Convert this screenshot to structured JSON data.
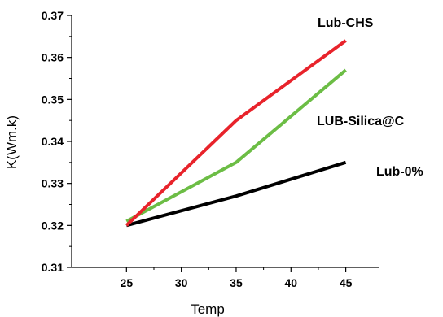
{
  "chart_data": {
    "type": "line",
    "title": "",
    "xlabel": "Temp",
    "ylabel": "K(Wm.k)",
    "x": [
      25,
      35,
      45
    ],
    "xlim": [
      20,
      48
    ],
    "xticks": [
      25,
      30,
      35,
      40,
      45
    ],
    "ylim": [
      0.31,
      0.37
    ],
    "yticks": [
      0.31,
      0.32,
      0.33,
      0.34,
      0.35,
      0.36,
      0.37
    ],
    "grid": false,
    "legend": "none",
    "series": [
      {
        "name": "Lub-CHS",
        "color": "#e8232b",
        "values": [
          0.32,
          0.345,
          0.364
        ]
      },
      {
        "name": "LUB-Silica@C",
        "color": "#6cbd45",
        "values": [
          0.321,
          0.335,
          0.357
        ]
      },
      {
        "name": "Lub-0%",
        "color": "#000000",
        "values": [
          0.32,
          0.327,
          0.335
        ]
      }
    ]
  }
}
